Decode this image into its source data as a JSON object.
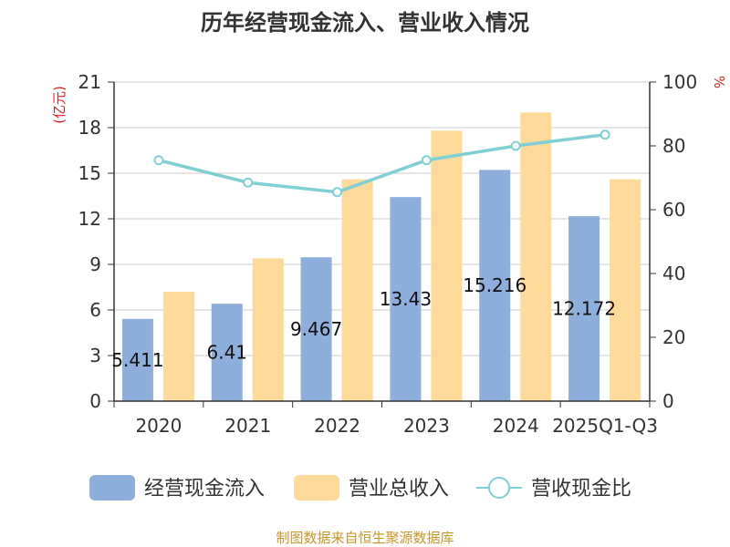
{
  "chart_data": {
    "type": "bar",
    "title": "历年经营现金流入、营业收入情况",
    "categories": [
      "2020",
      "2021",
      "2022",
      "2023",
      "2024",
      "2025Q1-Q3"
    ],
    "series": [
      {
        "name": "经营现金流入",
        "type": "bar",
        "axis": "left",
        "color": "#8eaedc",
        "values": [
          5.411,
          6.41,
          9.467,
          13.43,
          15.216,
          12.172
        ],
        "labels": [
          "5.411",
          "6.41",
          "9.467",
          "13.43",
          "15.216",
          "12.172"
        ]
      },
      {
        "name": "营业总收入",
        "type": "bar",
        "axis": "left",
        "color": "#fdd99a",
        "values": [
          7.2,
          9.4,
          14.6,
          17.8,
          19.0,
          14.6
        ]
      },
      {
        "name": "营收现金比",
        "type": "line",
        "axis": "right",
        "color": "#7fd0d4",
        "values": [
          75.5,
          68.5,
          65.5,
          75.5,
          80.0,
          83.5
        ]
      }
    ],
    "y_left": {
      "label": "(亿元)",
      "min": 0,
      "max": 21,
      "ticks": [
        0,
        3,
        6,
        9,
        12,
        15,
        18,
        21
      ]
    },
    "y_right": {
      "label": "%",
      "min": 0,
      "max": 100,
      "ticks": [
        0,
        20,
        40,
        60,
        80,
        100
      ]
    },
    "grid": true,
    "legend_position": "bottom",
    "source": "制图数据来自恒生聚源数据库"
  }
}
